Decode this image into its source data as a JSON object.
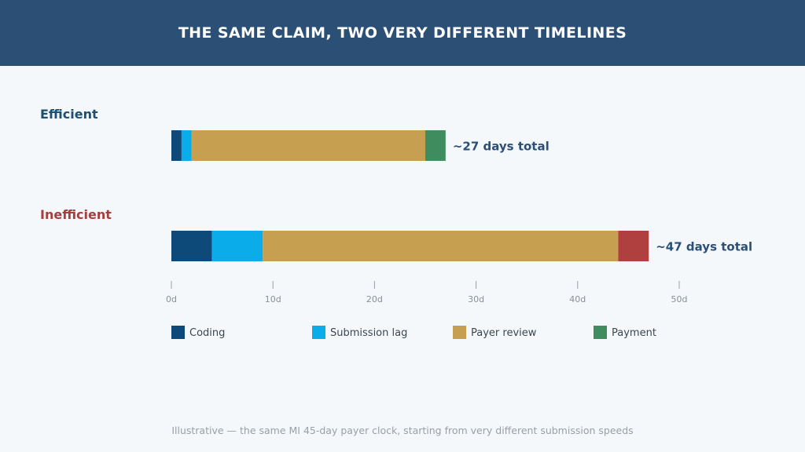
{
  "header": {
    "title": "THE SAME CLAIM, TWO VERY DIFFERENT TIMELINES"
  },
  "footnote": "Illustrative — the same MI 45-day payer clock, starting from very different submission speeds",
  "chart_data": {
    "type": "bar",
    "orientation": "horizontal",
    "stacked": true,
    "categories": [
      "Efficient",
      "Inefficient"
    ],
    "category_colors": [
      "#1d4f6e",
      "#a83d3d"
    ],
    "series": [
      {
        "name": "Coding",
        "values": [
          1,
          4
        ],
        "color": "#0d4a7a"
      },
      {
        "name": "Submission lag",
        "values": [
          1,
          5
        ],
        "color": "#0aadea"
      },
      {
        "name": "Payer review",
        "values": [
          23,
          35
        ],
        "color": "#c6a050"
      },
      {
        "name": "Payment",
        "values": [
          2,
          3
        ],
        "colors": [
          "#3f8c5f",
          "#b04040"
        ]
      }
    ],
    "totals": [
      "~27 days total",
      "~47 days total"
    ],
    "xlim": [
      0,
      50
    ],
    "xticks": [
      0,
      10,
      20,
      30,
      40,
      50
    ],
    "xtick_labels": [
      "0d",
      "10d",
      "20d",
      "30d",
      "40d",
      "50d"
    ],
    "legend": [
      "Coding",
      "Submission lag",
      "Payer review",
      "Payment"
    ],
    "legend_position": "bottom"
  }
}
